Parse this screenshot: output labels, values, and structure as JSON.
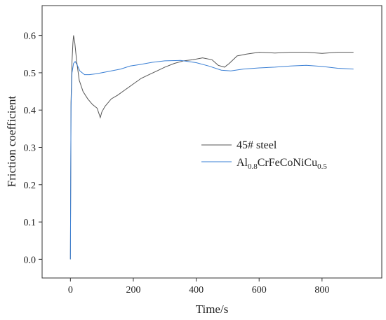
{
  "chart_data": {
    "type": "line",
    "title": "",
    "xlabel": "Time/s",
    "ylabel": "Friction coefficient",
    "xlim": [
      -90,
      990
    ],
    "ylim": [
      -0.05,
      0.68
    ],
    "xticks": [
      0,
      200,
      400,
      600,
      800
    ],
    "xtick_labels": [
      "0",
      "200",
      "400",
      "600",
      "800"
    ],
    "yticks": [
      0.0,
      0.1,
      0.2,
      0.3,
      0.4,
      0.5,
      0.6
    ],
    "ytick_labels": [
      "0.0",
      "0.1",
      "0.2",
      "0.3",
      "0.4",
      "0.5",
      "0.6"
    ],
    "grid": false,
    "legend_position": "center-right",
    "series": [
      {
        "name": "45# steel",
        "legend_parts": {
          "base": "45# steel"
        },
        "color": "#555555",
        "points": [
          [
            0,
            0.0
          ],
          [
            2,
            0.42
          ],
          [
            5,
            0.53
          ],
          [
            8,
            0.58
          ],
          [
            10,
            0.6
          ],
          [
            14,
            0.58
          ],
          [
            20,
            0.53
          ],
          [
            28,
            0.48
          ],
          [
            40,
            0.45
          ],
          [
            55,
            0.43
          ],
          [
            70,
            0.415
          ],
          [
            85,
            0.405
          ],
          [
            95,
            0.38
          ],
          [
            100,
            0.395
          ],
          [
            110,
            0.41
          ],
          [
            130,
            0.43
          ],
          [
            150,
            0.44
          ],
          [
            175,
            0.455
          ],
          [
            200,
            0.47
          ],
          [
            225,
            0.485
          ],
          [
            250,
            0.495
          ],
          [
            275,
            0.505
          ],
          [
            300,
            0.515
          ],
          [
            330,
            0.525
          ],
          [
            360,
            0.532
          ],
          [
            390,
            0.535
          ],
          [
            420,
            0.54
          ],
          [
            450,
            0.535
          ],
          [
            470,
            0.52
          ],
          [
            490,
            0.515
          ],
          [
            505,
            0.525
          ],
          [
            530,
            0.545
          ],
          [
            560,
            0.55
          ],
          [
            600,
            0.555
          ],
          [
            650,
            0.553
          ],
          [
            700,
            0.555
          ],
          [
            750,
            0.555
          ],
          [
            800,
            0.552
          ],
          [
            850,
            0.555
          ],
          [
            900,
            0.555
          ]
        ]
      },
      {
        "name": "Al0.8CrFeCoNiCu0.5",
        "legend_parts": {
          "base": "Al",
          "sub1": "0.8",
          "mid": "CrFeCoNiCu",
          "sub2": "0.5"
        },
        "color": "#3a7fd4",
        "points": [
          [
            0,
            0.0
          ],
          [
            2,
            0.41
          ],
          [
            5,
            0.5
          ],
          [
            10,
            0.525
          ],
          [
            15,
            0.53
          ],
          [
            22,
            0.52
          ],
          [
            30,
            0.505
          ],
          [
            45,
            0.495
          ],
          [
            60,
            0.495
          ],
          [
            80,
            0.497
          ],
          [
            100,
            0.5
          ],
          [
            130,
            0.505
          ],
          [
            160,
            0.51
          ],
          [
            190,
            0.518
          ],
          [
            220,
            0.522
          ],
          [
            260,
            0.528
          ],
          [
            300,
            0.532
          ],
          [
            350,
            0.533
          ],
          [
            400,
            0.527
          ],
          [
            440,
            0.518
          ],
          [
            480,
            0.507
          ],
          [
            510,
            0.505
          ],
          [
            550,
            0.51
          ],
          [
            600,
            0.513
          ],
          [
            650,
            0.515
          ],
          [
            700,
            0.518
          ],
          [
            750,
            0.52
          ],
          [
            800,
            0.517
          ],
          [
            850,
            0.512
          ],
          [
            900,
            0.51
          ]
        ]
      }
    ]
  }
}
